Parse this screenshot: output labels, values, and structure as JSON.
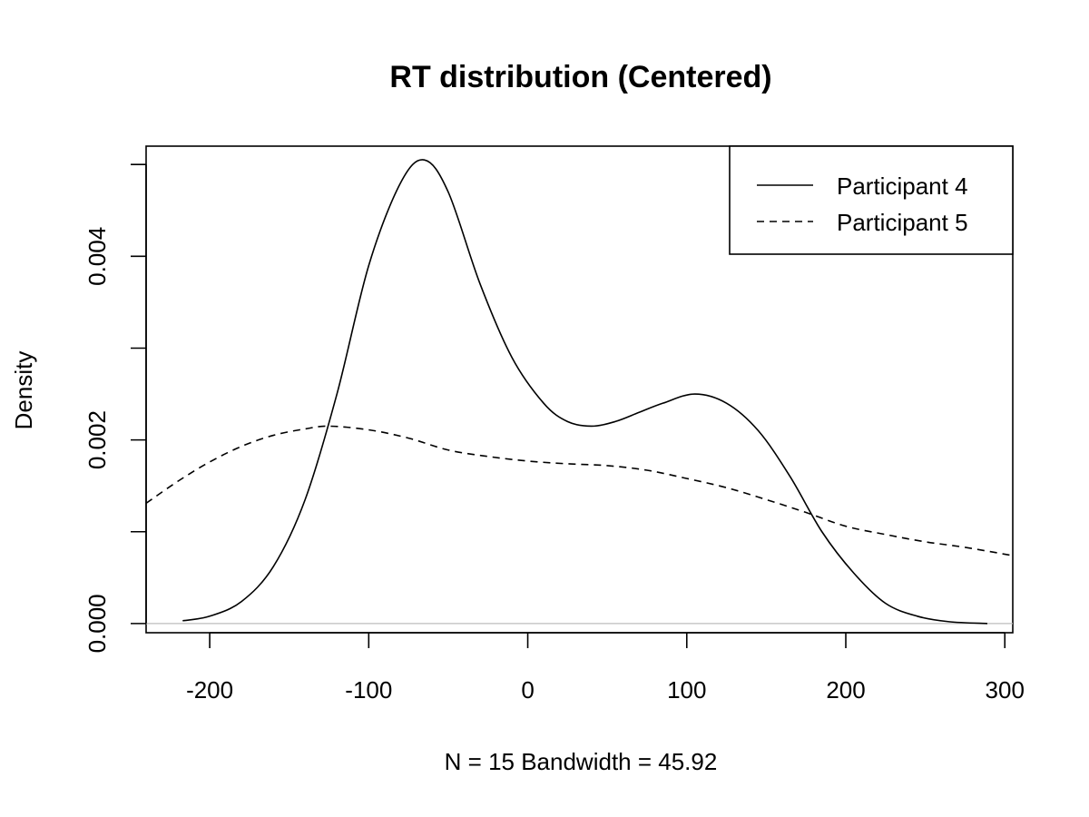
{
  "chart_data": {
    "type": "line",
    "title": "RT distribution (Centered)",
    "xlabel": "N = 15   Bandwidth = 45.92",
    "ylabel": "Density",
    "xlim": [
      -240,
      305
    ],
    "ylim": [
      -0.0001,
      0.0052
    ],
    "x_ticks": [
      -200,
      -100,
      0,
      100,
      200,
      300
    ],
    "x_tick_labels": [
      "-200",
      "-100",
      "0",
      "100",
      "200",
      "300"
    ],
    "y_ticks": [
      0,
      0.001,
      0.002,
      0.003,
      0.004,
      0.005
    ],
    "y_tick_labels": [
      "0.000",
      "",
      "0.002",
      "",
      "0.004",
      ""
    ],
    "grid": false,
    "zero_line": true,
    "zero_line_color": "#bebebe",
    "legend": {
      "position": "top-right",
      "entries": [
        {
          "label": "Participant 4",
          "style": "solid"
        },
        {
          "label": "Participant 5",
          "style": "dashed"
        }
      ]
    },
    "series": [
      {
        "name": "Participant 4",
        "style": "solid",
        "color": "#000000",
        "x": [
          -217,
          -200,
          -180,
          -160,
          -140,
          -120,
          -100,
          -80,
          -65,
          -50,
          -30,
          -10,
          10,
          25,
          40,
          55,
          70,
          85,
          105,
          125,
          145,
          165,
          185,
          205,
          225,
          245,
          265,
          289
        ],
        "y": [
          3e-05,
          8e-05,
          0.00024,
          0.00062,
          0.00135,
          0.0025,
          0.0039,
          0.0048,
          0.00505,
          0.0047,
          0.0037,
          0.0029,
          0.0024,
          0.0022,
          0.00215,
          0.0022,
          0.0023,
          0.0024,
          0.0025,
          0.0024,
          0.0021,
          0.0016,
          0.001,
          0.00055,
          0.00022,
          8e-05,
          2e-05,
          0.0
        ]
      },
      {
        "name": "Participant 5",
        "style": "dashed",
        "color": "#000000",
        "x": [
          -240,
          -220,
          -200,
          -180,
          -160,
          -140,
          -125,
          -100,
          -75,
          -50,
          -25,
          0,
          25,
          50,
          75,
          100,
          125,
          150,
          175,
          200,
          225,
          250,
          275,
          305
        ],
        "y": [
          0.00131,
          0.00155,
          0.00176,
          0.00193,
          0.00205,
          0.00212,
          0.00215,
          0.00211,
          0.00202,
          0.00189,
          0.00182,
          0.00177,
          0.00174,
          0.00172,
          0.00167,
          0.00158,
          0.00148,
          0.00135,
          0.00121,
          0.00106,
          0.00097,
          0.00089,
          0.00083,
          0.00074
        ]
      }
    ]
  }
}
